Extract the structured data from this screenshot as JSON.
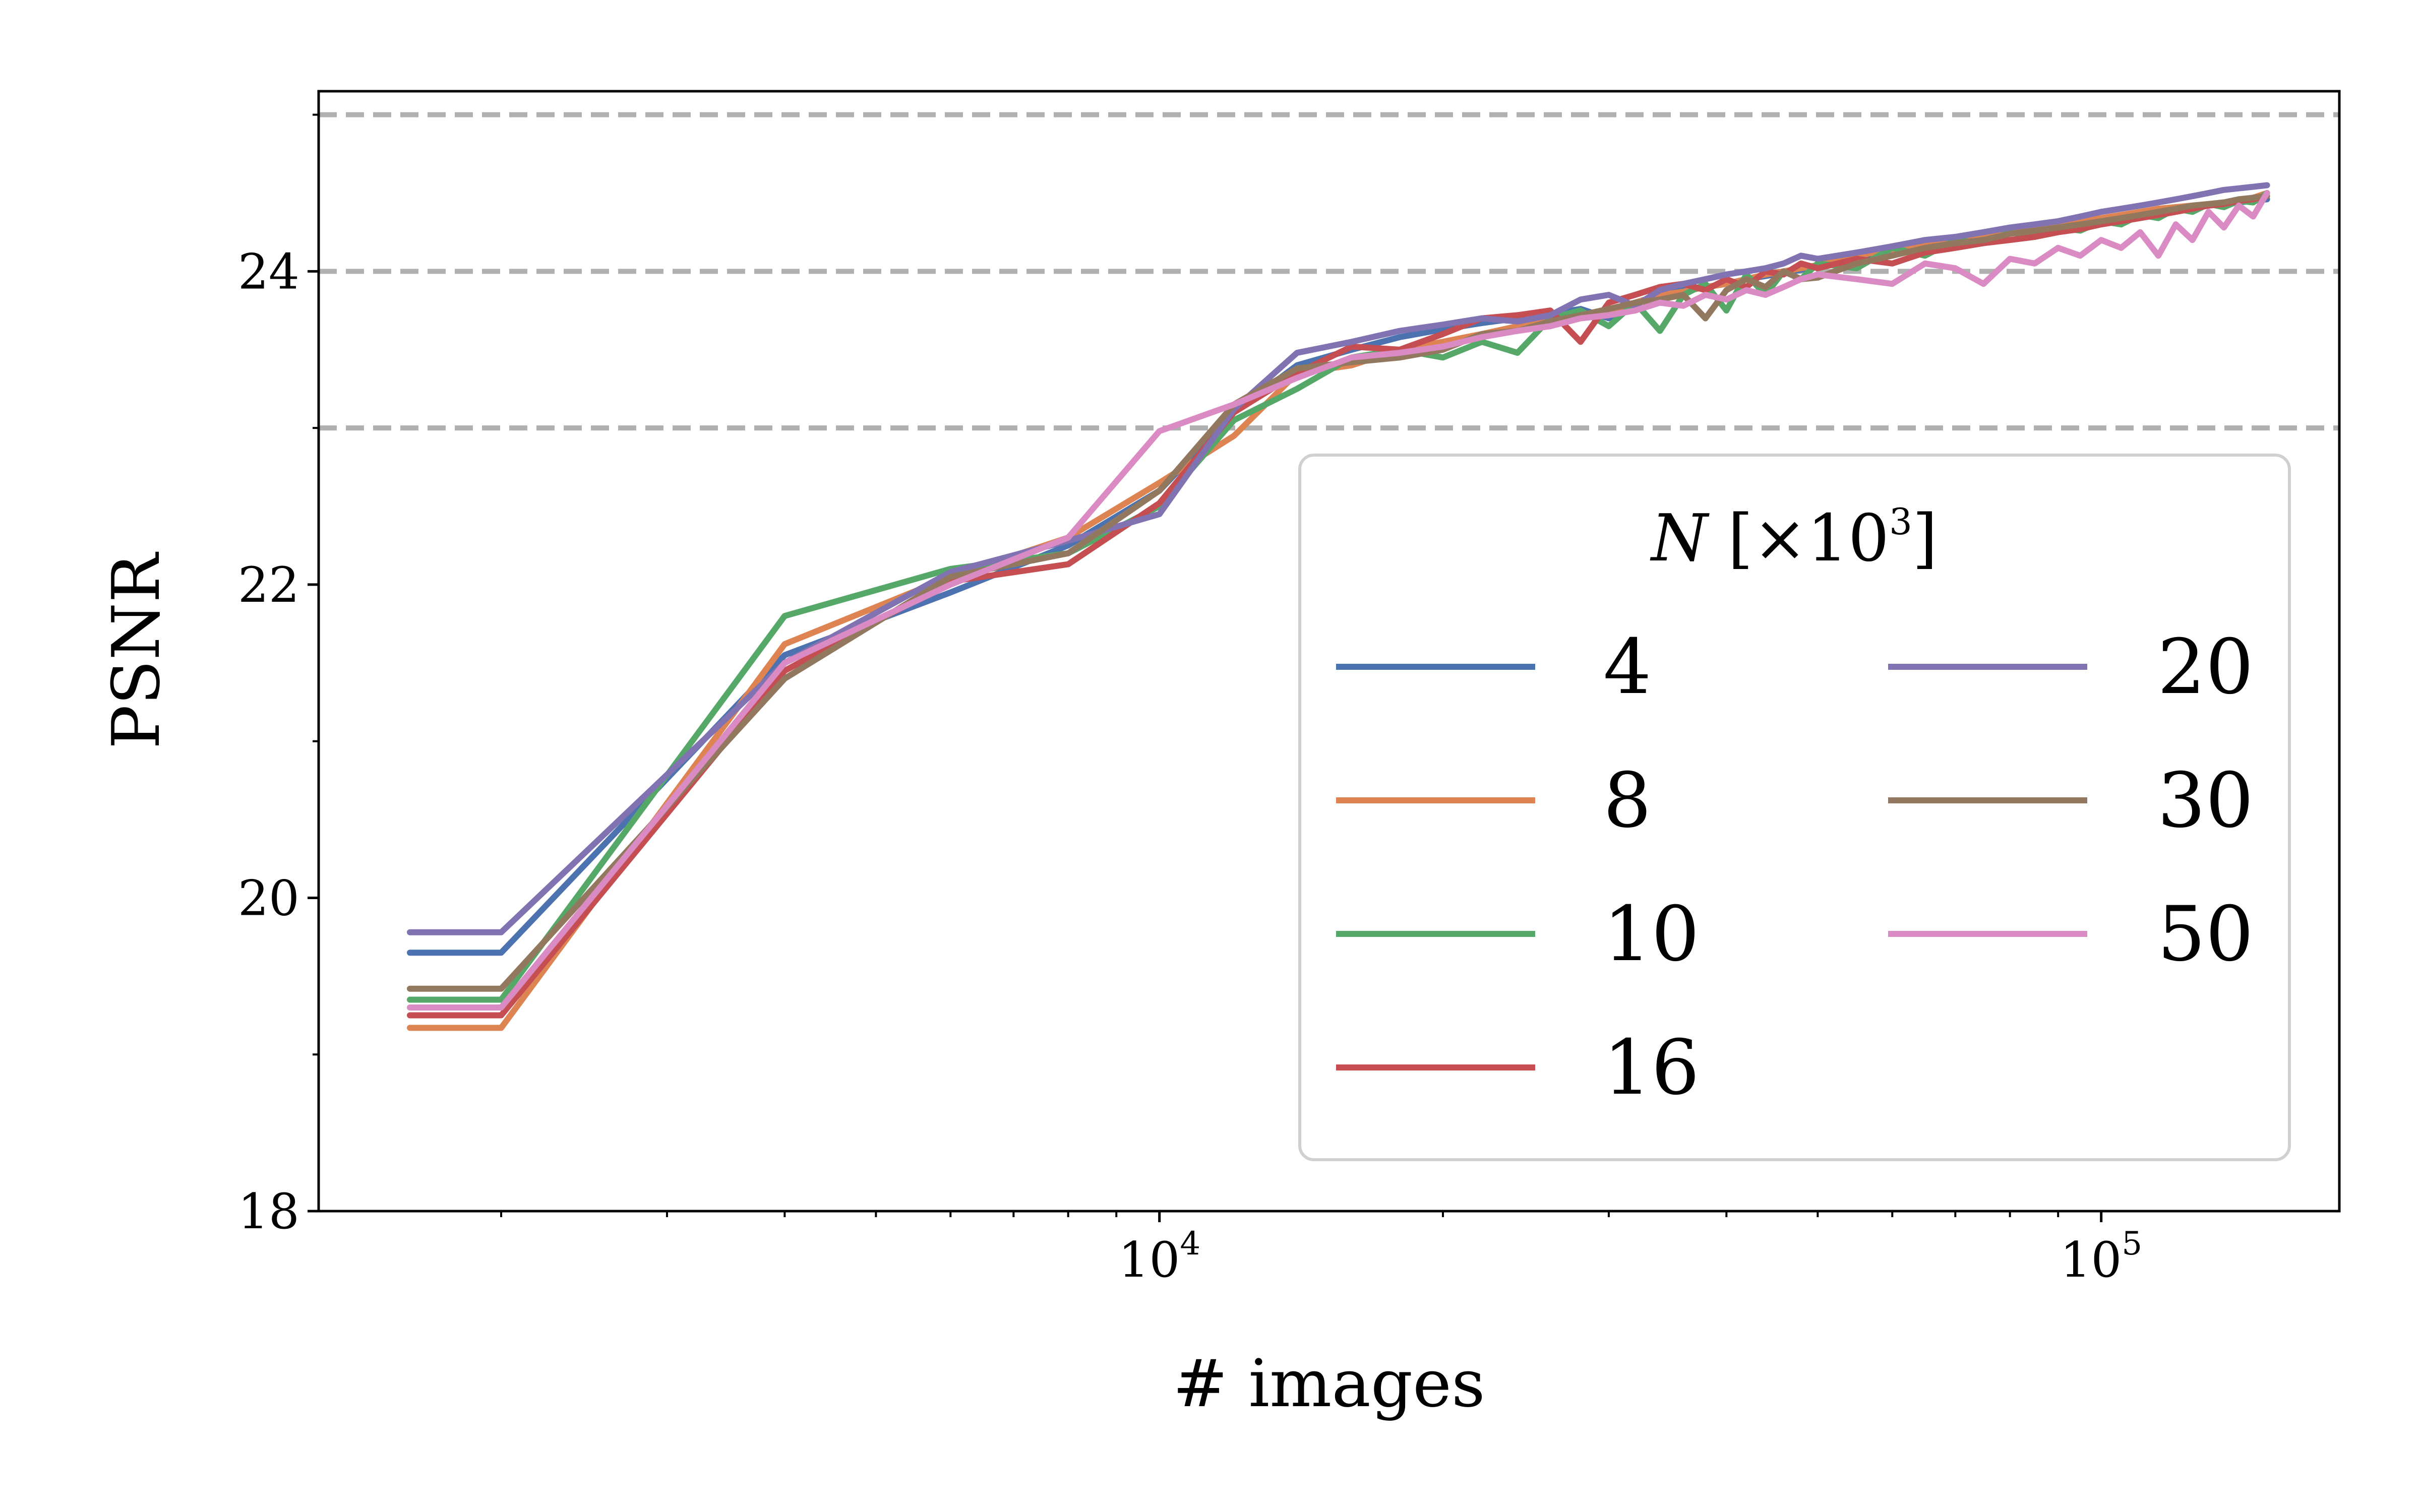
{
  "chart_data": {
    "type": "line",
    "xlabel": "# images",
    "ylabel": "PSNR",
    "xscale": "log",
    "xlim": [
      1280,
      179000
    ],
    "ylim": [
      18,
      25.15
    ],
    "yticks": [
      18,
      20,
      22,
      24
    ],
    "xticks_major": [
      {
        "value": 10000,
        "base": "10",
        "exp": "4"
      },
      {
        "value": 100000,
        "base": "10",
        "exp": "5"
      }
    ],
    "reference_lines": [
      23,
      24,
      25
    ],
    "legend": {
      "title_var": "N",
      "title_rest": "[×10",
      "title_sup": "3",
      "title_close": "]",
      "placement": "lower-right",
      "columns": 2
    },
    "x": [
      1600,
      2000,
      4000,
      6000,
      8000,
      10000,
      12000,
      14000,
      16000,
      18000,
      20000,
      22000,
      24000,
      26000,
      28000,
      30000,
      32000,
      34000,
      36000,
      38000,
      40000,
      42000,
      44000,
      46000,
      48000,
      50000,
      55000,
      60000,
      65000,
      70000,
      75000,
      80000,
      85000,
      90000,
      95000,
      100000,
      105000,
      110000,
      115000,
      120000,
      125000,
      130000,
      135000,
      140000,
      145000,
      150000
    ],
    "series": [
      {
        "name": "4",
        "color": "#4c72b0",
        "values": [
          19.65,
          19.65,
          21.55,
          21.95,
          22.25,
          22.6,
          23.1,
          23.4,
          23.5,
          23.58,
          23.63,
          23.67,
          23.7,
          23.73,
          23.76,
          23.7,
          23.8,
          23.85,
          23.88,
          23.9,
          23.92,
          23.95,
          23.97,
          23.99,
          24.01,
          24.03,
          24.08,
          24.12,
          24.16,
          24.19,
          24.22,
          24.25,
          24.27,
          24.29,
          24.31,
          24.33,
          24.35,
          24.37,
          24.38,
          24.4,
          24.41,
          24.42,
          24.43,
          24.44,
          24.45,
          24.46
        ]
      },
      {
        "name": "8",
        "color": "#dd8452",
        "values": [
          19.17,
          19.17,
          21.62,
          22.05,
          22.3,
          22.65,
          22.95,
          23.35,
          23.4,
          23.5,
          23.55,
          23.6,
          23.65,
          23.7,
          23.72,
          23.75,
          23.8,
          23.85,
          23.87,
          23.9,
          23.92,
          23.95,
          23.98,
          24.0,
          24.02,
          24.04,
          24.1,
          24.14,
          24.18,
          24.21,
          24.24,
          24.26,
          24.28,
          24.3,
          24.32,
          24.34,
          24.36,
          24.38,
          24.4,
          24.41,
          24.42,
          24.43,
          24.44,
          24.45,
          24.47,
          24.5
        ]
      },
      {
        "name": "10",
        "color": "#55a868",
        "values": [
          19.35,
          19.35,
          21.8,
          22.1,
          22.2,
          22.5,
          23.05,
          23.25,
          23.45,
          23.5,
          23.45,
          23.55,
          23.48,
          23.7,
          23.75,
          23.65,
          23.8,
          23.62,
          23.85,
          23.92,
          23.75,
          23.98,
          23.85,
          24.0,
          23.95,
          24.05,
          24.02,
          24.15,
          24.1,
          24.2,
          24.18,
          24.25,
          24.22,
          24.28,
          24.26,
          24.32,
          24.3,
          24.36,
          24.34,
          24.4,
          24.38,
          24.43,
          24.41,
          24.45,
          24.44,
          24.5
        ]
      },
      {
        "name": "16",
        "color": "#c44e52",
        "values": [
          19.25,
          19.25,
          21.45,
          22.02,
          22.13,
          22.52,
          23.1,
          23.35,
          23.52,
          23.5,
          23.6,
          23.7,
          23.72,
          23.75,
          23.55,
          23.8,
          23.85,
          23.9,
          23.92,
          23.88,
          23.95,
          23.9,
          24.0,
          23.98,
          24.05,
          24.02,
          24.08,
          24.05,
          24.12,
          24.15,
          24.18,
          24.2,
          24.22,
          24.25,
          24.27,
          24.3,
          24.32,
          24.34,
          24.36,
          24.38,
          24.4,
          24.42,
          24.43,
          24.45,
          24.46,
          24.48
        ]
      },
      {
        "name": "20",
        "color": "#8172b2",
        "values": [
          19.78,
          19.78,
          21.5,
          22.08,
          22.28,
          22.45,
          23.12,
          23.48,
          23.55,
          23.62,
          23.66,
          23.7,
          23.68,
          23.72,
          23.82,
          23.85,
          23.78,
          23.88,
          23.92,
          23.95,
          23.98,
          24.0,
          24.02,
          24.05,
          24.1,
          24.08,
          24.12,
          24.16,
          24.2,
          24.22,
          24.25,
          24.28,
          24.3,
          24.32,
          24.35,
          24.38,
          24.4,
          24.42,
          24.44,
          24.46,
          24.48,
          24.5,
          24.52,
          24.53,
          24.54,
          24.55
        ]
      },
      {
        "name": "30",
        "color": "#937860",
        "values": [
          19.42,
          19.42,
          21.4,
          22.05,
          22.2,
          22.6,
          23.15,
          23.38,
          23.42,
          23.45,
          23.5,
          23.6,
          23.62,
          23.68,
          23.72,
          23.76,
          23.8,
          23.82,
          23.85,
          23.7,
          23.88,
          23.95,
          23.9,
          24.0,
          23.95,
          23.96,
          24.05,
          24.1,
          24.15,
          24.18,
          24.2,
          24.24,
          24.26,
          24.28,
          24.3,
          24.32,
          24.34,
          24.36,
          24.38,
          24.4,
          24.42,
          24.43,
          24.44,
          24.46,
          24.47,
          24.48
        ]
      },
      {
        "name": "50",
        "color": "#da8bc3",
        "values": [
          19.3,
          19.3,
          21.5,
          22.0,
          22.3,
          22.98,
          23.15,
          23.32,
          23.45,
          23.48,
          23.52,
          23.58,
          23.62,
          23.65,
          23.7,
          23.72,
          23.75,
          23.8,
          23.78,
          23.85,
          23.82,
          23.88,
          23.85,
          23.9,
          23.95,
          23.98,
          23.95,
          23.92,
          24.05,
          24.02,
          23.92,
          24.08,
          24.05,
          24.15,
          24.1,
          24.2,
          24.15,
          24.25,
          24.1,
          24.3,
          24.2,
          24.38,
          24.28,
          24.42,
          24.35,
          24.5
        ]
      }
    ]
  }
}
